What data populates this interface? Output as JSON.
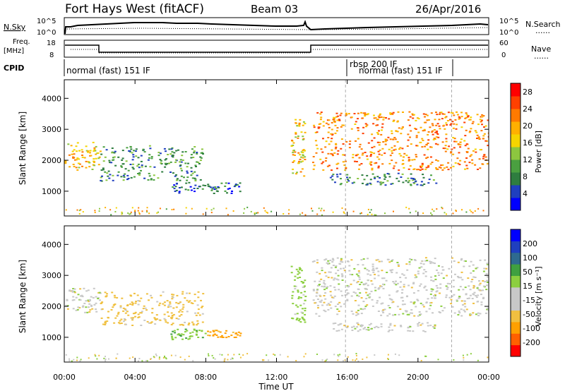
{
  "header": {
    "title": "Fort Hays West (fitACF)",
    "beam": "Beam 03",
    "date": "26/Apr/2016"
  },
  "top_panel": {
    "left_label": "N.Sky",
    "left_ticks": [
      "10^5",
      "10^0"
    ],
    "right_ticks": [
      "10^5",
      "10^0"
    ],
    "right_label": "N.Search",
    "right_marker": "......"
  },
  "freq_panel": {
    "label_line1": "Freq.",
    "label_line2": "[MHz]",
    "left_ticks": [
      "18",
      "8"
    ],
    "right_ticks": [
      "60",
      "0"
    ],
    "right_label": "Nave",
    "right_marker": "......"
  },
  "cpid": {
    "label": "CPID",
    "segments": [
      {
        "text": "normal (fast) 151 IF"
      },
      {
        "text": "rbsp 200 IF"
      },
      {
        "text": "normal (fast) 151 IF"
      }
    ]
  },
  "colors": {
    "power_scale": [
      "#0000ff",
      "#1f3fbf",
      "#2e7d3f",
      "#4aa040",
      "#8cc63f",
      "#f5d400",
      "#ffb000",
      "#ff7a00",
      "#ff4000",
      "#ff0000"
    ],
    "velocity_scale": [
      "#ff0000",
      "#ff6000",
      "#ffa000",
      "#f0c040",
      "#c8c8c8",
      "#c8c8c8",
      "#8ccf40",
      "#3fa040",
      "#2e6a8f",
      "#1f3fbf",
      "#0000ff"
    ],
    "ground_scatter": "#bbbbbb"
  },
  "chart_data": [
    {
      "type": "heatmap",
      "title": "",
      "xlabel": "Time UT",
      "ylabel": "Slant Range [km]",
      "x_ticks": [
        "00:00",
        "04:00",
        "08:00",
        "12:00",
        "16:00",
        "20:00",
        "00:00"
      ],
      "y_ticks": [
        1000,
        2000,
        3000,
        4000
      ],
      "xlim_hours": [
        0,
        24
      ],
      "ylim": [
        200,
        4600
      ],
      "colorbar_label": "Power [dB]",
      "colorbar_ticks": [
        4,
        8,
        12,
        16,
        20,
        24,
        28
      ],
      "colorbar_range": [
        0,
        30
      ],
      "blobs": [
        {
          "t0": 0.0,
          "t1": 2.0,
          "r0": 1700,
          "r1": 2600,
          "mean_db": 18
        },
        {
          "t0": 2.0,
          "t1": 7.8,
          "r0": 1350,
          "r1": 2500,
          "mean_db": 9
        },
        {
          "t0": 6.0,
          "t1": 10.0,
          "r0": 950,
          "r1": 1300,
          "mean_db": 6
        },
        {
          "t0": 12.8,
          "t1": 13.6,
          "r0": 1500,
          "r1": 3400,
          "mean_db": 18
        },
        {
          "t0": 14.0,
          "t1": 24.0,
          "r0": 1700,
          "r1": 3600,
          "mean_db": 22
        },
        {
          "t0": 15.0,
          "t1": 21.0,
          "r0": 1200,
          "r1": 1600,
          "mean_db": 8
        }
      ],
      "mode_change_hours": [
        15.9,
        21.9
      ]
    },
    {
      "type": "heatmap",
      "title": "",
      "xlabel": "Time UT",
      "ylabel": "Slant Range [km]",
      "x_ticks": [
        "00:00",
        "04:00",
        "08:00",
        "12:00",
        "16:00",
        "20:00",
        "00:00"
      ],
      "y_ticks": [
        1000,
        2000,
        3000,
        4000
      ],
      "xlim_hours": [
        0,
        24
      ],
      "ylim": [
        200,
        4600
      ],
      "colorbar_label": "Velocity [m s⁻¹]",
      "colorbar_ticks": [
        200,
        100,
        50,
        15,
        -15,
        -50,
        -100,
        -200
      ],
      "blobs": [
        {
          "t0": 0.0,
          "t1": 2.0,
          "r0": 1800,
          "r1": 2600,
          "velocity": 0
        },
        {
          "t0": 2.0,
          "t1": 7.8,
          "r0": 1400,
          "r1": 2500,
          "velocity": -30
        },
        {
          "t0": 6.0,
          "t1": 8.0,
          "r0": 950,
          "r1": 1300,
          "velocity": 40
        },
        {
          "t0": 8.0,
          "t1": 10.0,
          "r0": 1000,
          "r1": 1250,
          "velocity": -60
        },
        {
          "t0": 12.8,
          "t1": 13.6,
          "r0": 1500,
          "r1": 3400,
          "velocity": 30
        },
        {
          "t0": 14.0,
          "t1": 24.0,
          "r0": 1700,
          "r1": 3600,
          "velocity": 0
        },
        {
          "t0": 15.0,
          "t1": 21.0,
          "r0": 1200,
          "r1": 1500,
          "velocity": 0
        }
      ],
      "mode_change_hours": [
        15.9,
        21.9
      ]
    }
  ]
}
